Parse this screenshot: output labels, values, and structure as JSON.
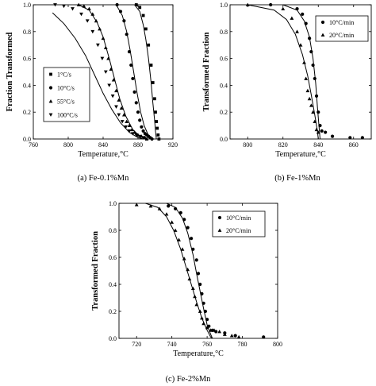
{
  "chart_data": [
    {
      "type": "scatter",
      "panel": "a",
      "caption": "(a) Fe-0.1%Mn",
      "xlabel": "Temperature,°C",
      "ylabel": "Fraction Transformed",
      "xlim": [
        760,
        920
      ],
      "ylim": [
        0.0,
        1.0
      ],
      "xticks": [
        760,
        800,
        840,
        880,
        920
      ],
      "yticks": [
        0.0,
        0.2,
        0.4,
        0.6,
        0.8,
        1.0
      ],
      "legend_position": "middle-left",
      "series": [
        {
          "name": "1°C/s",
          "marker": "square",
          "points": [
            [
              878,
              1.0
            ],
            [
              882,
              0.98
            ],
            [
              886,
              0.92
            ],
            [
              889,
              0.82
            ],
            [
              892,
              0.7
            ],
            [
              895,
              0.55
            ],
            [
              897,
              0.42
            ],
            [
              899,
              0.3
            ],
            [
              900,
              0.2
            ],
            [
              901,
              0.13
            ],
            [
              902,
              0.08
            ],
            [
              903,
              0.03
            ],
            [
              904,
              0.0
            ]
          ]
        },
        {
          "name": "10°C/s",
          "marker": "circle",
          "points": [
            [
              856,
              1.0
            ],
            [
              860,
              0.95
            ],
            [
              864,
              0.88
            ],
            [
              867,
              0.78
            ],
            [
              870,
              0.65
            ],
            [
              872,
              0.55
            ],
            [
              874,
              0.45
            ],
            [
              876,
              0.35
            ],
            [
              878,
              0.27
            ],
            [
              880,
              0.2
            ],
            [
              882,
              0.14
            ],
            [
              884,
              0.09
            ],
            [
              886,
              0.06
            ],
            [
              888,
              0.04
            ],
            [
              890,
              0.03
            ],
            [
              892,
              0.02
            ],
            [
              894,
              0.01
            ],
            [
              896,
              0.0
            ]
          ]
        },
        {
          "name": "55°C/s",
          "marker": "triangle-up",
          "points": [
            [
              812,
              1.0
            ],
            [
              818,
              0.99
            ],
            [
              824,
              0.97
            ],
            [
              828,
              0.93
            ],
            [
              832,
              0.88
            ],
            [
              836,
              0.82
            ],
            [
              840,
              0.75
            ],
            [
              843,
              0.68
            ],
            [
              846,
              0.6
            ],
            [
              849,
              0.52
            ],
            [
              852,
              0.44
            ],
            [
              855,
              0.36
            ],
            [
              858,
              0.29
            ],
            [
              861,
              0.23
            ],
            [
              864,
              0.18
            ],
            [
              867,
              0.13
            ],
            [
              870,
              0.1
            ],
            [
              873,
              0.07
            ],
            [
              876,
              0.05
            ],
            [
              880,
              0.03
            ],
            [
              884,
              0.02
            ],
            [
              888,
              0.01
            ],
            [
              890,
              0.0
            ]
          ]
        },
        {
          "name": "100°C/s",
          "marker": "triangle-down",
          "points": [
            [
              785,
              1.0
            ],
            [
              795,
              0.99
            ],
            [
              805,
              0.97
            ],
            [
              815,
              0.93
            ],
            [
              822,
              0.88
            ],
            [
              828,
              0.8
            ],
            [
              834,
              0.7
            ],
            [
              839,
              0.6
            ],
            [
              843,
              0.5
            ],
            [
              847,
              0.4
            ],
            [
              851,
              0.32
            ],
            [
              855,
              0.24
            ],
            [
              858,
              0.18
            ],
            [
              862,
              0.13
            ],
            [
              866,
              0.09
            ],
            [
              870,
              0.06
            ],
            [
              874,
              0.04
            ],
            [
              878,
              0.03
            ],
            [
              882,
              0.02
            ],
            [
              886,
              0.01
            ],
            [
              889,
              0.0
            ]
          ]
        }
      ],
      "fit_curves": [
        [
          [
            876,
            1.0
          ],
          [
            882,
            0.95
          ],
          [
            886,
            0.85
          ],
          [
            889,
            0.74
          ],
          [
            892,
            0.6
          ],
          [
            895,
            0.42
          ],
          [
            897,
            0.27
          ],
          [
            899,
            0.14
          ],
          [
            900,
            0.06
          ],
          [
            901,
            0.0
          ]
        ],
        [
          [
            855,
            1.0
          ],
          [
            862,
            0.92
          ],
          [
            867,
            0.8
          ],
          [
            871,
            0.66
          ],
          [
            875,
            0.5
          ],
          [
            879,
            0.34
          ],
          [
            883,
            0.2
          ],
          [
            887,
            0.1
          ],
          [
            891,
            0.04
          ],
          [
            895,
            0.0
          ]
        ],
        [
          [
            812,
            1.0
          ],
          [
            824,
            0.96
          ],
          [
            833,
            0.87
          ],
          [
            840,
            0.76
          ],
          [
            847,
            0.6
          ],
          [
            853,
            0.45
          ],
          [
            859,
            0.3
          ],
          [
            866,
            0.17
          ],
          [
            874,
            0.07
          ],
          [
            882,
            0.02
          ],
          [
            888,
            0.0
          ]
        ],
        [
          [
            782,
            0.94
          ],
          [
            795,
            0.86
          ],
          [
            808,
            0.75
          ],
          [
            820,
            0.62
          ],
          [
            830,
            0.48
          ],
          [
            840,
            0.34
          ],
          [
            850,
            0.22
          ],
          [
            860,
            0.12
          ],
          [
            870,
            0.05
          ],
          [
            880,
            0.01
          ],
          [
            886,
            0.0
          ]
        ]
      ]
    },
    {
      "type": "scatter",
      "panel": "b",
      "caption": "(b) Fe-1%Mn",
      "xlabel": "Temperature,°C",
      "ylabel": "Transformed Fraction",
      "xlim": [
        790,
        870
      ],
      "ylim": [
        0.0,
        1.0
      ],
      "xticks": [
        800,
        820,
        840,
        860
      ],
      "yticks": [
        0.0,
        0.2,
        0.4,
        0.6,
        0.8,
        1.0
      ],
      "legend_position": "top-right",
      "series": [
        {
          "name": "10°C/min",
          "marker": "circle",
          "points": [
            [
              813,
              1.0
            ],
            [
              828,
              0.97
            ],
            [
              831,
              0.93
            ],
            [
              833,
              0.86
            ],
            [
              835,
              0.75
            ],
            [
              836,
              0.65
            ],
            [
              837,
              0.55
            ],
            [
              838,
              0.45
            ],
            [
              839,
              0.32
            ],
            [
              840,
              0.2
            ],
            [
              841,
              0.1
            ],
            [
              842,
              0.06
            ],
            [
              844,
              0.05
            ],
            [
              848,
              0.02
            ],
            [
              858,
              0.01
            ],
            [
              865,
              0.01
            ]
          ]
        },
        {
          "name": "20°C/min",
          "marker": "triangle-up",
          "points": [
            [
              800,
              1.0
            ],
            [
              820,
              0.97
            ],
            [
              825,
              0.9
            ],
            [
              828,
              0.8
            ],
            [
              830,
              0.7
            ],
            [
              832,
              0.57
            ],
            [
              833,
              0.45
            ],
            [
              834,
              0.36
            ],
            [
              835,
              0.3
            ],
            [
              836,
              0.25
            ],
            [
              837,
              0.2
            ],
            [
              838,
              0.13
            ],
            [
              839,
              0.07
            ],
            [
              840,
              0.05
            ]
          ]
        }
      ],
      "fit_curves": [
        [
          [
            820,
            1.0
          ],
          [
            828,
            0.96
          ],
          [
            832,
            0.88
          ],
          [
            835,
            0.76
          ],
          [
            837,
            0.6
          ],
          [
            838.5,
            0.42
          ],
          [
            839.5,
            0.24
          ],
          [
            840.5,
            0.08
          ],
          [
            841,
            0.0
          ]
        ],
        [
          [
            800,
            1.0
          ],
          [
            815,
            0.96
          ],
          [
            822,
            0.89
          ],
          [
            827,
            0.78
          ],
          [
            831,
            0.63
          ],
          [
            834,
            0.47
          ],
          [
            836,
            0.33
          ],
          [
            838,
            0.18
          ],
          [
            839.5,
            0.06
          ],
          [
            840,
            0.0
          ]
        ]
      ]
    },
    {
      "type": "scatter",
      "panel": "c",
      "caption": "(c) Fe-2%Mn",
      "xlabel": "Temperature,°C",
      "ylabel": "Transformed Fraction",
      "xlim": [
        710,
        800
      ],
      "ylim": [
        0.0,
        1.0
      ],
      "xticks": [
        720,
        740,
        760,
        780,
        800
      ],
      "yticks": [
        0.0,
        0.2,
        0.4,
        0.6,
        0.8,
        1.0
      ],
      "legend_position": "top-right",
      "series": [
        {
          "name": "10°C/min",
          "marker": "circle",
          "points": [
            [
              738,
              0.98
            ],
            [
              742,
              0.96
            ],
            [
              745,
              0.93
            ],
            [
              747,
              0.88
            ],
            [
              749,
              0.82
            ],
            [
              751,
              0.74
            ],
            [
              752,
              0.66
            ],
            [
              754,
              0.58
            ],
            [
              755,
              0.48
            ],
            [
              756,
              0.4
            ],
            [
              757,
              0.33
            ],
            [
              758,
              0.26
            ],
            [
              759,
              0.2
            ],
            [
              760,
              0.14
            ],
            [
              761,
              0.09
            ],
            [
              763,
              0.06
            ],
            [
              765,
              0.05
            ],
            [
              770,
              0.04
            ],
            [
              776,
              0.02
            ],
            [
              792,
              0.01
            ]
          ]
        },
        {
          "name": "20°C/min",
          "marker": "triangle-up",
          "points": [
            [
              720,
              0.99
            ],
            [
              728,
              0.98
            ],
            [
              733,
              0.96
            ],
            [
              737,
              0.92
            ],
            [
              740,
              0.86
            ],
            [
              742,
              0.8
            ],
            [
              744,
              0.73
            ],
            [
              746,
              0.66
            ],
            [
              747,
              0.59
            ],
            [
              749,
              0.51
            ],
            [
              750,
              0.44
            ],
            [
              752,
              0.37
            ],
            [
              753,
              0.31
            ],
            [
              754,
              0.25
            ],
            [
              756,
              0.2
            ],
            [
              757,
              0.15
            ],
            [
              758,
              0.11
            ],
            [
              760,
              0.08
            ],
            [
              762,
              0.06
            ],
            [
              764,
              0.06
            ],
            [
              767,
              0.05
            ],
            [
              770,
              0.03
            ],
            [
              774,
              0.02
            ],
            [
              778,
              0.01
            ]
          ]
        }
      ],
      "fit_curves": [
        [
          [
            737,
            1.0
          ],
          [
            742,
            0.97
          ],
          [
            746,
            0.89
          ],
          [
            749,
            0.78
          ],
          [
            752,
            0.62
          ],
          [
            754,
            0.48
          ],
          [
            756,
            0.35
          ],
          [
            758,
            0.22
          ],
          [
            760,
            0.1
          ],
          [
            762,
            0.03
          ],
          [
            763,
            0.0
          ]
        ],
        [
          [
            725,
            1.0
          ],
          [
            732,
            0.97
          ],
          [
            737,
            0.9
          ],
          [
            741,
            0.8
          ],
          [
            745,
            0.66
          ],
          [
            748,
            0.53
          ],
          [
            751,
            0.4
          ],
          [
            754,
            0.27
          ],
          [
            757,
            0.15
          ],
          [
            760,
            0.06
          ],
          [
            762,
            0.01
          ],
          [
            763,
            0.0
          ]
        ]
      ]
    }
  ]
}
